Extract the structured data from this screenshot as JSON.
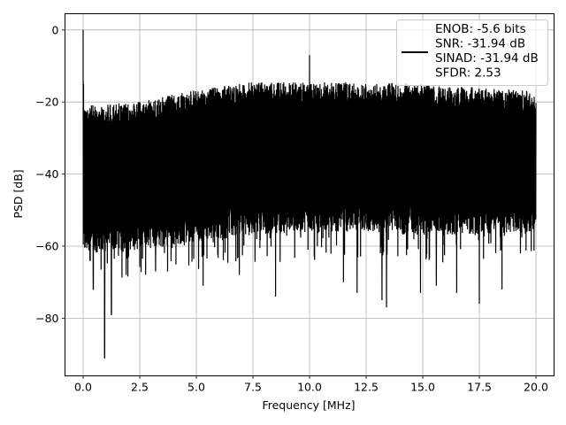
{
  "chart_data": {
    "type": "line",
    "title": "",
    "xlabel": "Frequency [MHz]",
    "ylabel": "PSD [dB]",
    "xlim": [
      -0.8,
      20.8
    ],
    "ylim": [
      -96,
      4.5
    ],
    "xticks": [
      0.0,
      2.5,
      5.0,
      7.5,
      10.0,
      12.5,
      15.0,
      17.5,
      20.0
    ],
    "xtick_labels": [
      "0.0",
      "2.5",
      "5.0",
      "7.5",
      "10.0",
      "12.5",
      "15.0",
      "17.5",
      "20.0"
    ],
    "yticks": [
      0,
      -20,
      -40,
      -60,
      -80
    ],
    "ytick_labels": [
      "0",
      "−20",
      "−40",
      "−60",
      "−80"
    ],
    "grid": true,
    "legend_position": "top-right",
    "series": [
      {
        "name": "ENOB: -5.6 bits\nSNR: -31.94 dB\nSINAD: -31.94 dB\nSFDR: 2.53",
        "color": "#000000",
        "x_range": [
          0.0,
          20.0
        ],
        "description_values": {
          "peaks": [
            {
              "x": 0.0,
              "y": 0.0
            },
            {
              "x": 10.0,
              "y": -7.0
            }
          ],
          "envelope_upper": [
            {
              "x": 0.0,
              "y": -21
            },
            {
              "x": 2.5,
              "y": -20
            },
            {
              "x": 5.0,
              "y": -16.5
            },
            {
              "x": 7.5,
              "y": -14.5
            },
            {
              "x": 10.0,
              "y": -14.5
            },
            {
              "x": 12.5,
              "y": -14.5
            },
            {
              "x": 15.0,
              "y": -15
            },
            {
              "x": 17.5,
              "y": -16
            },
            {
              "x": 20.0,
              "y": -17
            }
          ],
          "envelope_lower": [
            {
              "x": 0.0,
              "y": -62
            },
            {
              "x": 2.5,
              "y": -61
            },
            {
              "x": 5.0,
              "y": -59
            },
            {
              "x": 7.5,
              "y": -57
            },
            {
              "x": 10.0,
              "y": -56
            },
            {
              "x": 12.5,
              "y": -56
            },
            {
              "x": 15.0,
              "y": -57
            },
            {
              "x": 17.5,
              "y": -57
            },
            {
              "x": 20.0,
              "y": -56
            }
          ],
          "deep_nulls": [
            {
              "x": 0.45,
              "y": -72
            },
            {
              "x": 0.95,
              "y": -91
            },
            {
              "x": 1.25,
              "y": -79
            },
            {
              "x": 1.9,
              "y": -68
            },
            {
              "x": 3.2,
              "y": -67
            },
            {
              "x": 5.3,
              "y": -71
            },
            {
              "x": 6.9,
              "y": -68
            },
            {
              "x": 8.5,
              "y": -74
            },
            {
              "x": 11.5,
              "y": -70
            },
            {
              "x": 12.1,
              "y": -73
            },
            {
              "x": 13.2,
              "y": -75
            },
            {
              "x": 13.4,
              "y": -77
            },
            {
              "x": 14.9,
              "y": -73
            },
            {
              "x": 15.6,
              "y": -71
            },
            {
              "x": 16.5,
              "y": -73
            },
            {
              "x": 17.5,
              "y": -76
            },
            {
              "x": 18.5,
              "y": -72
            }
          ]
        }
      }
    ]
  }
}
